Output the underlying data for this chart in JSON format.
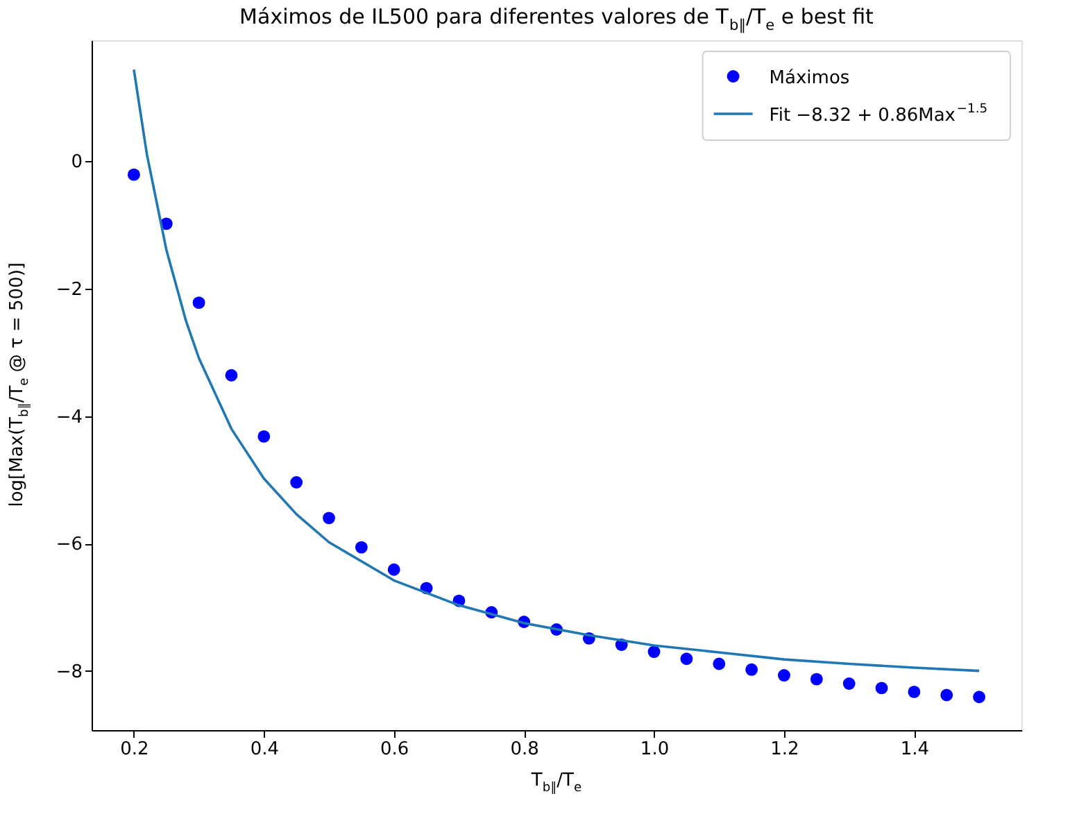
{
  "chart_data": {
    "type": "scatter",
    "title": "Máximos de IL500 para diferentes valores de T$_{b∥}$/T$_{e}$ e best fit",
    "xlabel": "T$_{b∥}$/T$_{e}$",
    "ylabel": "log[Max(T$_{b∥}$/T$_{e}$ @ τ = 500)]",
    "xlim": [
      0.135,
      1.565
    ],
    "ylim": [
      -8.93,
      1.9
    ],
    "xticks": [
      {
        "value": 0.2,
        "label": "0.2"
      },
      {
        "value": 0.4,
        "label": "0.4"
      },
      {
        "value": 0.6,
        "label": "0.6"
      },
      {
        "value": 0.8,
        "label": "0.8"
      },
      {
        "value": 1.0,
        "label": "1.0"
      },
      {
        "value": 1.2,
        "label": "1.2"
      },
      {
        "value": 1.4,
        "label": "1.4"
      }
    ],
    "yticks": [
      -8,
      -6,
      -4,
      -2,
      0
    ],
    "grid": false,
    "legend": "top right",
    "series": [
      {
        "name": "Máximos",
        "type": "scatter",
        "marker": "circle",
        "color": "#0000ff",
        "x": [
          0.2,
          0.25,
          0.3,
          0.35,
          0.4,
          0.45,
          0.5,
          0.55,
          0.6,
          0.65,
          0.7,
          0.75,
          0.8,
          0.85,
          0.9,
          0.95,
          1.0,
          1.05,
          1.1,
          1.15,
          1.2,
          1.25,
          1.3,
          1.35,
          1.4,
          1.45,
          1.5
        ],
        "values": [
          -0.21,
          -0.98,
          -2.22,
          -3.36,
          -4.32,
          -5.04,
          -5.6,
          -6.06,
          -6.41,
          -6.7,
          -6.9,
          -7.08,
          -7.23,
          -7.35,
          -7.49,
          -7.59,
          -7.7,
          -7.81,
          -7.89,
          -7.98,
          -8.07,
          -8.13,
          -8.2,
          -8.27,
          -8.33,
          -8.38,
          -8.41
        ]
      },
      {
        "name": "Fit −8.32 + 0.86Max$^{−1.5}$",
        "type": "line",
        "line_style": "solid",
        "color": "#1f77b4",
        "x": [
          0.2,
          0.22,
          0.25,
          0.28,
          0.3,
          0.35,
          0.4,
          0.45,
          0.5,
          0.6,
          0.7,
          0.8,
          0.9,
          1.0,
          1.1,
          1.2,
          1.3,
          1.4,
          1.5
        ],
        "values": [
          1.44,
          0.11,
          -1.39,
          -2.5,
          -3.09,
          -4.2,
          -4.98,
          -5.54,
          -5.98,
          -6.58,
          -6.97,
          -7.25,
          -7.44,
          -7.6,
          -7.71,
          -7.82,
          -7.89,
          -7.95,
          -8.0
        ]
      }
    ]
  }
}
